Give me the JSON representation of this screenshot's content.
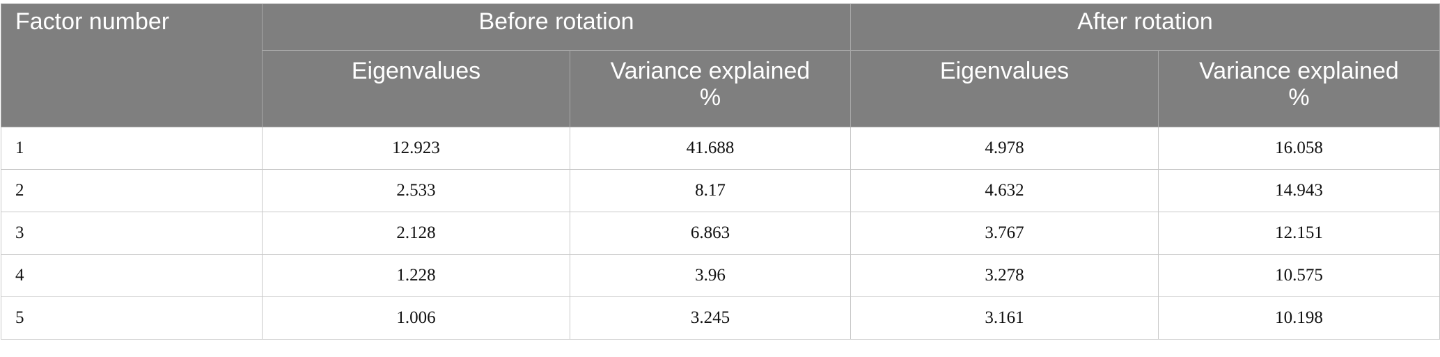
{
  "table": {
    "header": {
      "factor": "Factor number",
      "groups": [
        {
          "label": "Before rotation",
          "sub": [
            "Eigenvalues",
            "Variance explained\n%"
          ]
        },
        {
          "label": "After rotation",
          "sub": [
            "Eigenvalues",
            "Variance explained\n%"
          ]
        }
      ]
    },
    "rows": [
      [
        "1",
        "12.923",
        "41.688",
        "4.978",
        "16.058"
      ],
      [
        "2",
        "2.533",
        "8.17",
        "4.632",
        "14.943"
      ],
      [
        "3",
        "2.128",
        "6.863",
        "3.767",
        "12.151"
      ],
      [
        "4",
        "1.228",
        "3.96",
        "3.278",
        "10.575"
      ],
      [
        "5",
        "1.006",
        "3.245",
        "3.161",
        "10.198"
      ]
    ]
  }
}
